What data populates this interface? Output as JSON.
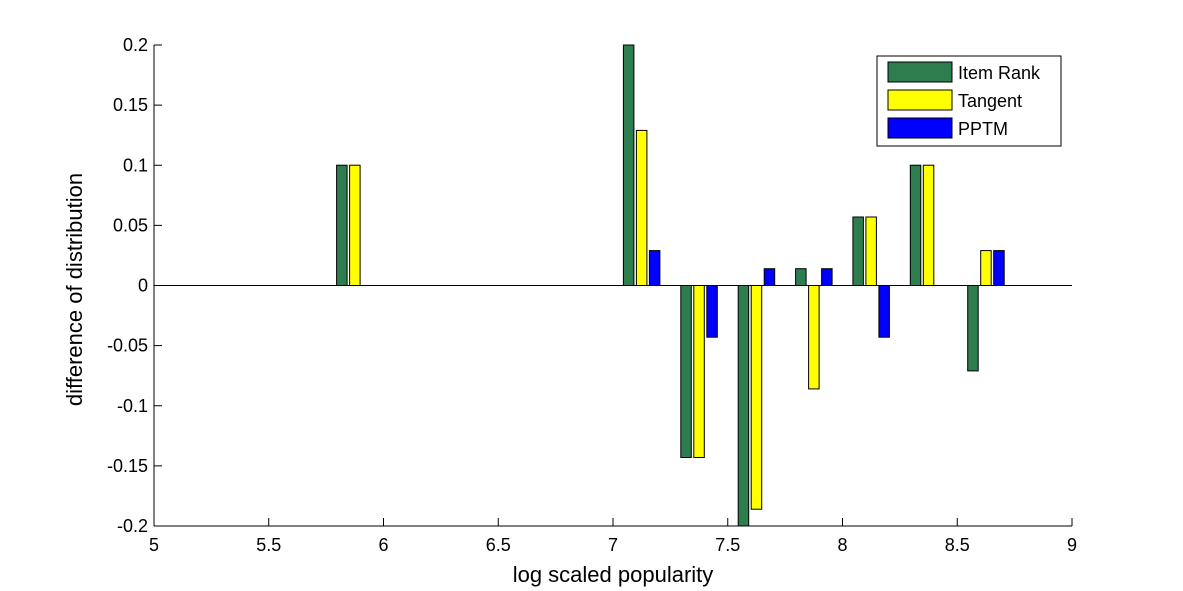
{
  "chart_data": {
    "type": "bar",
    "xlabel": "log scaled popularity",
    "ylabel": "difference of distribution",
    "xlim": [
      5,
      9
    ],
    "ylim": [
      -0.2,
      0.2
    ],
    "xticks": [
      5,
      5.5,
      6,
      6.5,
      7,
      7.5,
      8,
      8.5,
      9
    ],
    "xtick_labels": [
      "5",
      "5.5",
      "6",
      "6.5",
      "7",
      "7.5",
      "8",
      "8.5",
      "9"
    ],
    "yticks": [
      0.2,
      0.15,
      0.1,
      0.05,
      0,
      -0.05,
      -0.1,
      -0.15,
      -0.2
    ],
    "ytick_labels": [
      "0.2",
      "0.15",
      "0.1",
      "0.05",
      "0",
      "-0.05",
      "-0.1",
      "-0.15",
      "-0.2"
    ],
    "legend_position": "top-right",
    "grid": false,
    "x": [
      5.125,
      5.375,
      5.625,
      5.875,
      6.125,
      6.375,
      6.625,
      6.875,
      7.125,
      7.375,
      7.625,
      7.875,
      8.125,
      8.375,
      8.625,
      8.875
    ],
    "series": [
      {
        "name": "Item Rank",
        "color": "#2e7d4f",
        "values": [
          0,
          0,
          0,
          0.1,
          0,
          0,
          0,
          0,
          0.2,
          -0.143,
          -0.2,
          0.014,
          0.057,
          0.1,
          -0.071,
          0
        ]
      },
      {
        "name": "Tangent",
        "color": "#ffff00",
        "values": [
          0,
          0,
          0,
          0.1,
          0,
          0,
          0,
          0,
          0.129,
          -0.143,
          -0.186,
          -0.086,
          0.057,
          0.1,
          0.029,
          0
        ]
      },
      {
        "name": "PPTM",
        "color": "#0000ff",
        "values": [
          0,
          0,
          0,
          0,
          0,
          0,
          0,
          0,
          0.029,
          -0.043,
          0.014,
          0.014,
          -0.043,
          0,
          0.029,
          0
        ]
      }
    ]
  }
}
